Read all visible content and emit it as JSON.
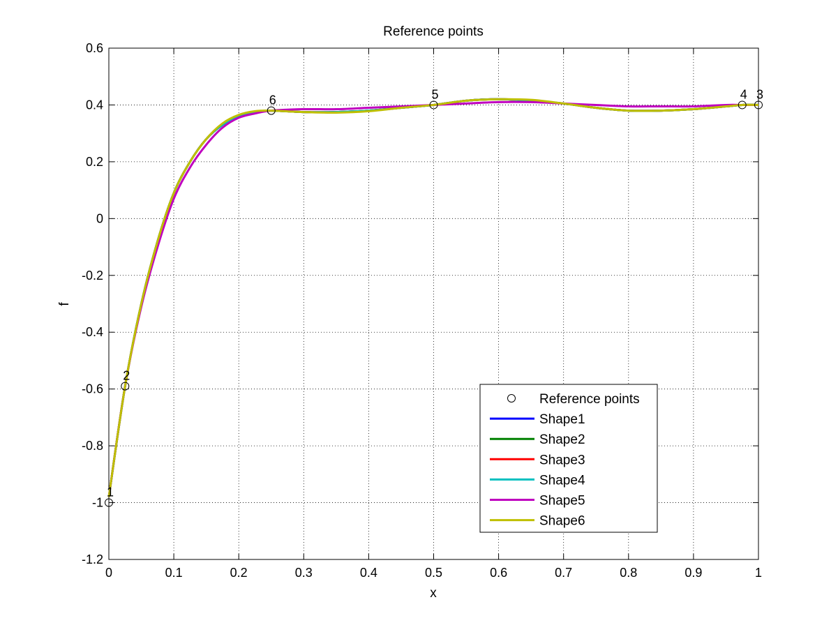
{
  "chart_data": {
    "type": "line",
    "title": "Reference points",
    "xlabel": "x",
    "ylabel": "f",
    "xlim": [
      0,
      1
    ],
    "ylim": [
      -1.2,
      0.6
    ],
    "xticks": [
      "0",
      "0.1",
      "0.2",
      "0.3",
      "0.4",
      "0.5",
      "0.6",
      "0.7",
      "0.8",
      "0.9",
      "1"
    ],
    "yticks": [
      "-1.2",
      "-1",
      "-0.8",
      "-0.6",
      "-0.4",
      "-0.2",
      "0",
      "0.2",
      "0.4",
      "0.6"
    ],
    "grid": true,
    "legend_position": "bottom-right",
    "reference_points": {
      "name": "Reference points",
      "points": [
        {
          "label": "1",
          "x": 0.0,
          "y": -1.0
        },
        {
          "label": "2",
          "x": 0.025,
          "y": -0.59
        },
        {
          "label": "3",
          "x": 1.0,
          "y": 0.4
        },
        {
          "label": "4",
          "x": 0.975,
          "y": 0.4
        },
        {
          "label": "5",
          "x": 0.5,
          "y": 0.4
        },
        {
          "label": "6",
          "x": 0.25,
          "y": 0.38
        }
      ]
    },
    "series": [
      {
        "name": "Shape1",
        "color": "#0000ff",
        "x": [
          0,
          0.025,
          0.05,
          0.075,
          0.1,
          0.125,
          0.15,
          0.175,
          0.2,
          0.225,
          0.25,
          0.3,
          0.35,
          0.4,
          0.45,
          0.5,
          0.55,
          0.6,
          0.65,
          0.7,
          0.75,
          0.8,
          0.85,
          0.9,
          0.95,
          0.975,
          1.0
        ],
        "y": [
          -0.98,
          -0.59,
          -0.3,
          -0.08,
          0.09,
          0.2,
          0.28,
          0.33,
          0.36,
          0.375,
          0.38,
          0.375,
          0.375,
          0.38,
          0.39,
          0.4,
          0.415,
          0.42,
          0.415,
          0.405,
          0.39,
          0.38,
          0.38,
          0.385,
          0.395,
          0.4,
          0.4
        ]
      },
      {
        "name": "Shape2",
        "color": "#008000",
        "x": [
          0,
          0.025,
          0.05,
          0.075,
          0.1,
          0.125,
          0.15,
          0.175,
          0.2,
          0.225,
          0.25,
          0.3,
          0.35,
          0.4,
          0.45,
          0.5,
          0.55,
          0.6,
          0.65,
          0.7,
          0.75,
          0.8,
          0.85,
          0.9,
          0.95,
          0.975,
          1.0
        ],
        "y": [
          -0.98,
          -0.59,
          -0.3,
          -0.08,
          0.09,
          0.2,
          0.28,
          0.33,
          0.36,
          0.375,
          0.38,
          0.375,
          0.375,
          0.38,
          0.39,
          0.4,
          0.415,
          0.42,
          0.415,
          0.405,
          0.39,
          0.38,
          0.38,
          0.385,
          0.395,
          0.4,
          0.4
        ]
      },
      {
        "name": "Shape3",
        "color": "#ff0000",
        "x": [
          0,
          0.025,
          0.05,
          0.075,
          0.1,
          0.125,
          0.15,
          0.175,
          0.2,
          0.225,
          0.25,
          0.3,
          0.35,
          0.4,
          0.45,
          0.5,
          0.55,
          0.6,
          0.65,
          0.7,
          0.75,
          0.8,
          0.85,
          0.9,
          0.95,
          0.975,
          1.0
        ],
        "y": [
          -0.98,
          -0.59,
          -0.3,
          -0.08,
          0.09,
          0.2,
          0.28,
          0.33,
          0.36,
          0.375,
          0.38,
          0.375,
          0.375,
          0.38,
          0.39,
          0.4,
          0.415,
          0.42,
          0.415,
          0.405,
          0.39,
          0.38,
          0.38,
          0.385,
          0.395,
          0.4,
          0.4
        ]
      },
      {
        "name": "Shape4",
        "color": "#00bfbf",
        "x": [
          0,
          0.025,
          0.05,
          0.075,
          0.1,
          0.125,
          0.15,
          0.175,
          0.2,
          0.225,
          0.25,
          0.3,
          0.35,
          0.4,
          0.45,
          0.5,
          0.55,
          0.6,
          0.65,
          0.7,
          0.75,
          0.8,
          0.85,
          0.9,
          0.95,
          0.975,
          1.0
        ],
        "y": [
          -0.98,
          -0.59,
          -0.3,
          -0.08,
          0.09,
          0.2,
          0.28,
          0.33,
          0.36,
          0.375,
          0.38,
          0.375,
          0.375,
          0.38,
          0.39,
          0.4,
          0.415,
          0.42,
          0.415,
          0.405,
          0.39,
          0.38,
          0.38,
          0.385,
          0.395,
          0.4,
          0.4
        ]
      },
      {
        "name": "Shape5",
        "color": "#bf00bf",
        "x": [
          0,
          0.025,
          0.05,
          0.075,
          0.1,
          0.125,
          0.15,
          0.175,
          0.2,
          0.225,
          0.25,
          0.3,
          0.35,
          0.4,
          0.45,
          0.5,
          0.55,
          0.6,
          0.65,
          0.7,
          0.75,
          0.8,
          0.85,
          0.9,
          0.95,
          0.975,
          1.0
        ],
        "y": [
          -0.98,
          -0.59,
          -0.31,
          -0.1,
          0.07,
          0.18,
          0.26,
          0.32,
          0.355,
          0.37,
          0.38,
          0.385,
          0.385,
          0.39,
          0.395,
          0.4,
          0.405,
          0.41,
          0.41,
          0.405,
          0.4,
          0.395,
          0.395,
          0.395,
          0.4,
          0.4,
          0.4
        ]
      },
      {
        "name": "Shape6",
        "color": "#bfbf00",
        "x": [
          0,
          0.025,
          0.05,
          0.075,
          0.1,
          0.125,
          0.15,
          0.175,
          0.2,
          0.225,
          0.25,
          0.3,
          0.35,
          0.4,
          0.45,
          0.5,
          0.55,
          0.6,
          0.65,
          0.7,
          0.75,
          0.8,
          0.85,
          0.9,
          0.95,
          0.975,
          1.0
        ],
        "y": [
          -0.98,
          -0.59,
          -0.3,
          -0.08,
          0.09,
          0.2,
          0.28,
          0.335,
          0.365,
          0.378,
          0.38,
          0.375,
          0.373,
          0.378,
          0.39,
          0.4,
          0.415,
          0.42,
          0.418,
          0.405,
          0.39,
          0.38,
          0.38,
          0.385,
          0.395,
          0.4,
          0.4
        ]
      }
    ]
  }
}
